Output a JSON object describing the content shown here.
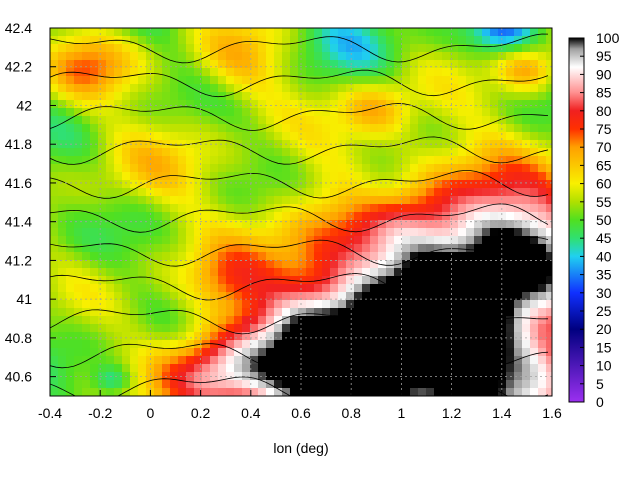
{
  "chart_data": {
    "type": "heatmap",
    "title": "",
    "xlabel": "lon (deg)",
    "ylabel": "",
    "xlim": [
      -0.4,
      1.6
    ],
    "ylim": [
      40.5,
      42.4
    ],
    "x_ticks": [
      "-0.4",
      "-0.2",
      "0",
      "0.2",
      "0.4",
      "0.6",
      "0.8",
      "1",
      "1.2",
      "1.4",
      "1.6"
    ],
    "y_ticks": [
      "40.6",
      "40.8",
      "41",
      "41.2",
      "41.4",
      "41.6",
      "41.8",
      "42",
      "42.2",
      "42.4"
    ],
    "grid": true,
    "colorbar": {
      "range": [
        0,
        100
      ],
      "ticks": [
        "0",
        "5",
        "10",
        "15",
        "20",
        "25",
        "30",
        "35",
        "40",
        "45",
        "50",
        "55",
        "60",
        "65",
        "70",
        "75",
        "80",
        "85",
        "90",
        "95",
        "100"
      ],
      "stops": [
        {
          "v": 0,
          "c": "#9b30f0"
        },
        {
          "v": 20,
          "c": "#000080"
        },
        {
          "v": 30,
          "c": "#1030ff"
        },
        {
          "v": 40,
          "c": "#20d0f0"
        },
        {
          "v": 45,
          "c": "#30e070"
        },
        {
          "v": 50,
          "c": "#50e020"
        },
        {
          "v": 55,
          "c": "#b0e000"
        },
        {
          "v": 60,
          "c": "#f8f000"
        },
        {
          "v": 70,
          "c": "#ffa000"
        },
        {
          "v": 75,
          "c": "#ff3000"
        },
        {
          "v": 80,
          "c": "#f02020"
        },
        {
          "v": 85,
          "c": "#ff9090"
        },
        {
          "v": 92,
          "c": "#ffffff"
        },
        {
          "v": 97,
          "c": "#a0a0a0"
        },
        {
          "v": 100,
          "c": "#000000"
        }
      ]
    },
    "field_features": [
      {
        "lon": 1.25,
        "lat": 40.65,
        "value": 85,
        "spread": 0.75
      },
      {
        "lon": 1.05,
        "lat": 40.95,
        "value": 82,
        "spread": 0.55
      },
      {
        "lon": 0.65,
        "lat": 40.62,
        "value": 80,
        "spread": 0.35
      },
      {
        "lon": 1.45,
        "lat": 41.3,
        "value": 80,
        "spread": 0.3
      },
      {
        "lon": 0.25,
        "lat": 40.6,
        "value": 75,
        "spread": 0.2
      },
      {
        "lon": -0.25,
        "lat": 42.2,
        "value": 68,
        "spread": 0.18
      },
      {
        "lon": 0.35,
        "lat": 42.22,
        "value": 65,
        "spread": 0.2
      },
      {
        "lon": 0.9,
        "lat": 41.98,
        "value": 66,
        "spread": 0.15
      },
      {
        "lon": 1.5,
        "lat": 42.18,
        "value": 68,
        "spread": 0.12
      },
      {
        "lon": 0.3,
        "lat": 41.1,
        "value": 62,
        "spread": 0.15
      },
      {
        "lon": 0.0,
        "lat": 41.7,
        "value": 60,
        "spread": 0.25
      },
      {
        "lon": 0.9,
        "lat": 41.55,
        "value": 42,
        "spread": 0.15
      },
      {
        "lon": 1.4,
        "lat": 42.38,
        "value": 38,
        "spread": 0.12
      },
      {
        "lon": 0.8,
        "lat": 42.35,
        "value": 45,
        "spread": 0.2
      },
      {
        "lon": -0.15,
        "lat": 40.58,
        "value": 40,
        "spread": 0.08
      },
      {
        "lon": 1.2,
        "lat": 41.7,
        "value": 55,
        "spread": 0.25
      }
    ],
    "background_value": 52
  }
}
